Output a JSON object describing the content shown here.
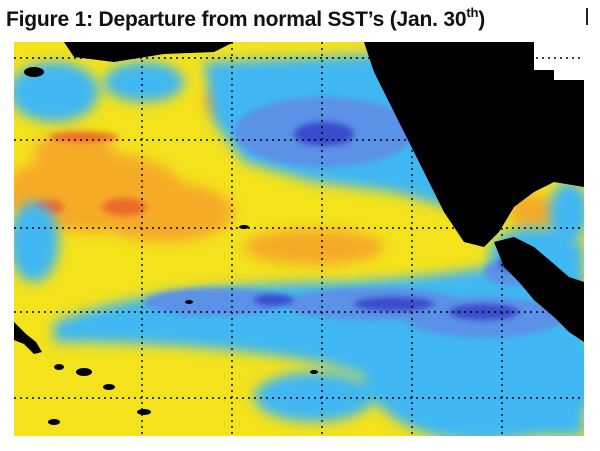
{
  "figure": {
    "title_text": "Figure 1: Departure from normal SST’s (Jan. 30",
    "title_superscript": "th",
    "title_suffix": ")"
  },
  "map": {
    "colors": {
      "background": "#ffffff",
      "land": "#000000",
      "warm_yellow": "#f3e21c",
      "warm_orange": "#f6a52a",
      "hot_red": "#e8562a",
      "neutral_cyan": "#41b7f2",
      "cool_blue": "#5d8fe6",
      "cold_dark_blue": "#3640c8",
      "grid_line": "#000000"
    }
  }
}
